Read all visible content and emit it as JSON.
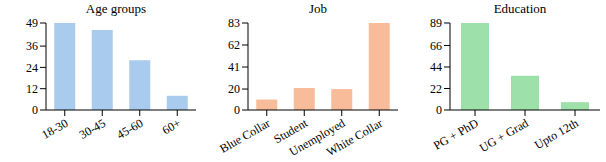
{
  "chart_data": [
    {
      "type": "bar",
      "title": "Age groups",
      "categories": [
        "18-30",
        "30-45",
        "45-60",
        "60+"
      ],
      "values": [
        49,
        45,
        28,
        8
      ],
      "color": "#a9cbee",
      "ylim": [
        0,
        49
      ],
      "yticks": [
        0,
        12,
        24,
        36,
        49
      ]
    },
    {
      "type": "bar",
      "title": "Job",
      "categories": [
        "Blue Collar",
        "Student",
        "Unemployed",
        "White Collar"
      ],
      "values": [
        10,
        21,
        20,
        83
      ],
      "color": "#f9bc9a",
      "ylim": [
        0,
        83
      ],
      "yticks": [
        0,
        20,
        41,
        62,
        83
      ]
    },
    {
      "type": "bar",
      "title": "Education",
      "categories": [
        "PG + PhD",
        "UG + Grad",
        "Upto 12th"
      ],
      "values": [
        89,
        35,
        8
      ],
      "color": "#9ee0aa",
      "ylim": [
        0,
        89
      ],
      "yticks": [
        0,
        22,
        44,
        66,
        89
      ]
    }
  ]
}
